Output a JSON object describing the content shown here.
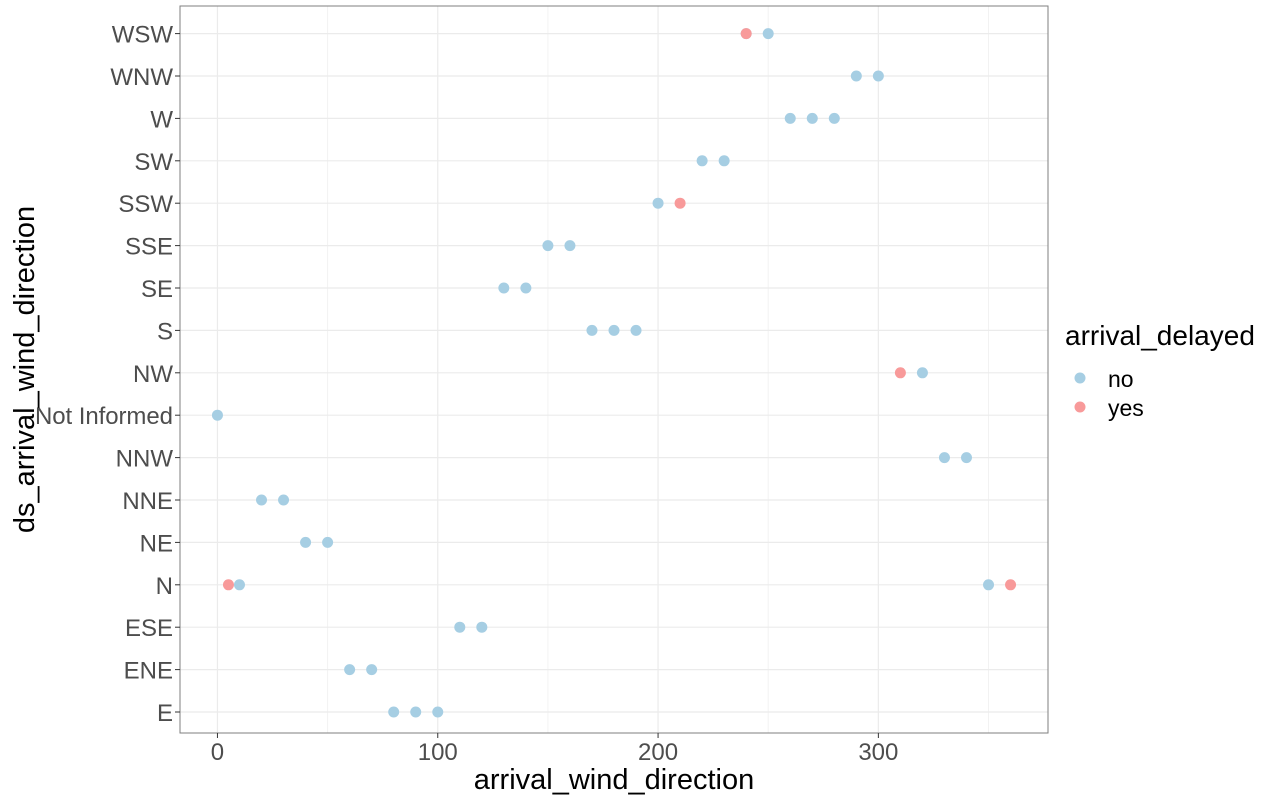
{
  "chart_data": {
    "type": "scatter",
    "xlabel": "arrival_wind_direction",
    "ylabel": "ds_arrival_wind_direction",
    "xlim": [
      -17,
      377
    ],
    "x_ticks": [
      0,
      100,
      200,
      300
    ],
    "categories": [
      "E",
      "ENE",
      "ESE",
      "N",
      "NE",
      "NNE",
      "NNW",
      "Not Informed",
      "NW",
      "S",
      "SE",
      "SSE",
      "SSW",
      "SW",
      "W",
      "WNW",
      "WSW"
    ],
    "grid": true,
    "legend": {
      "title": "arrival_delayed",
      "placement": "right",
      "entries": [
        {
          "label": "no",
          "color": "#a6cee3"
        },
        {
          "label": "yes",
          "color": "#f89a9a"
        }
      ]
    },
    "series": [
      {
        "name": "no",
        "color": "#a6cee3",
        "points": [
          {
            "x": 250,
            "y": "WSW"
          },
          {
            "x": 240,
            "y": "WSW"
          },
          {
            "x": 290,
            "y": "WNW"
          },
          {
            "x": 300,
            "y": "WNW"
          },
          {
            "x": 260,
            "y": "W"
          },
          {
            "x": 270,
            "y": "W"
          },
          {
            "x": 280,
            "y": "W"
          },
          {
            "x": 220,
            "y": "SW"
          },
          {
            "x": 230,
            "y": "SW"
          },
          {
            "x": 200,
            "y": "SSW"
          },
          {
            "x": 150,
            "y": "SSE"
          },
          {
            "x": 160,
            "y": "SSE"
          },
          {
            "x": 130,
            "y": "SE"
          },
          {
            "x": 140,
            "y": "SE"
          },
          {
            "x": 170,
            "y": "S"
          },
          {
            "x": 180,
            "y": "S"
          },
          {
            "x": 190,
            "y": "S"
          },
          {
            "x": 320,
            "y": "NW"
          },
          {
            "x": 0,
            "y": "Not Informed"
          },
          {
            "x": 330,
            "y": "NNW"
          },
          {
            "x": 340,
            "y": "NNW"
          },
          {
            "x": 20,
            "y": "NNE"
          },
          {
            "x": 30,
            "y": "NNE"
          },
          {
            "x": 40,
            "y": "NE"
          },
          {
            "x": 50,
            "y": "NE"
          },
          {
            "x": 10,
            "y": "N"
          },
          {
            "x": 350,
            "y": "N"
          },
          {
            "x": 110,
            "y": "ESE"
          },
          {
            "x": 120,
            "y": "ESE"
          },
          {
            "x": 60,
            "y": "ENE"
          },
          {
            "x": 70,
            "y": "ENE"
          },
          {
            "x": 80,
            "y": "E"
          },
          {
            "x": 90,
            "y": "E"
          },
          {
            "x": 100,
            "y": "E"
          }
        ]
      },
      {
        "name": "yes",
        "color": "#f89a9a",
        "points": [
          {
            "x": 240,
            "y": "WSW"
          },
          {
            "x": 210,
            "y": "SSW"
          },
          {
            "x": 310,
            "y": "NW"
          },
          {
            "x": 5,
            "y": "N"
          },
          {
            "x": 360,
            "y": "N"
          }
        ]
      }
    ]
  }
}
